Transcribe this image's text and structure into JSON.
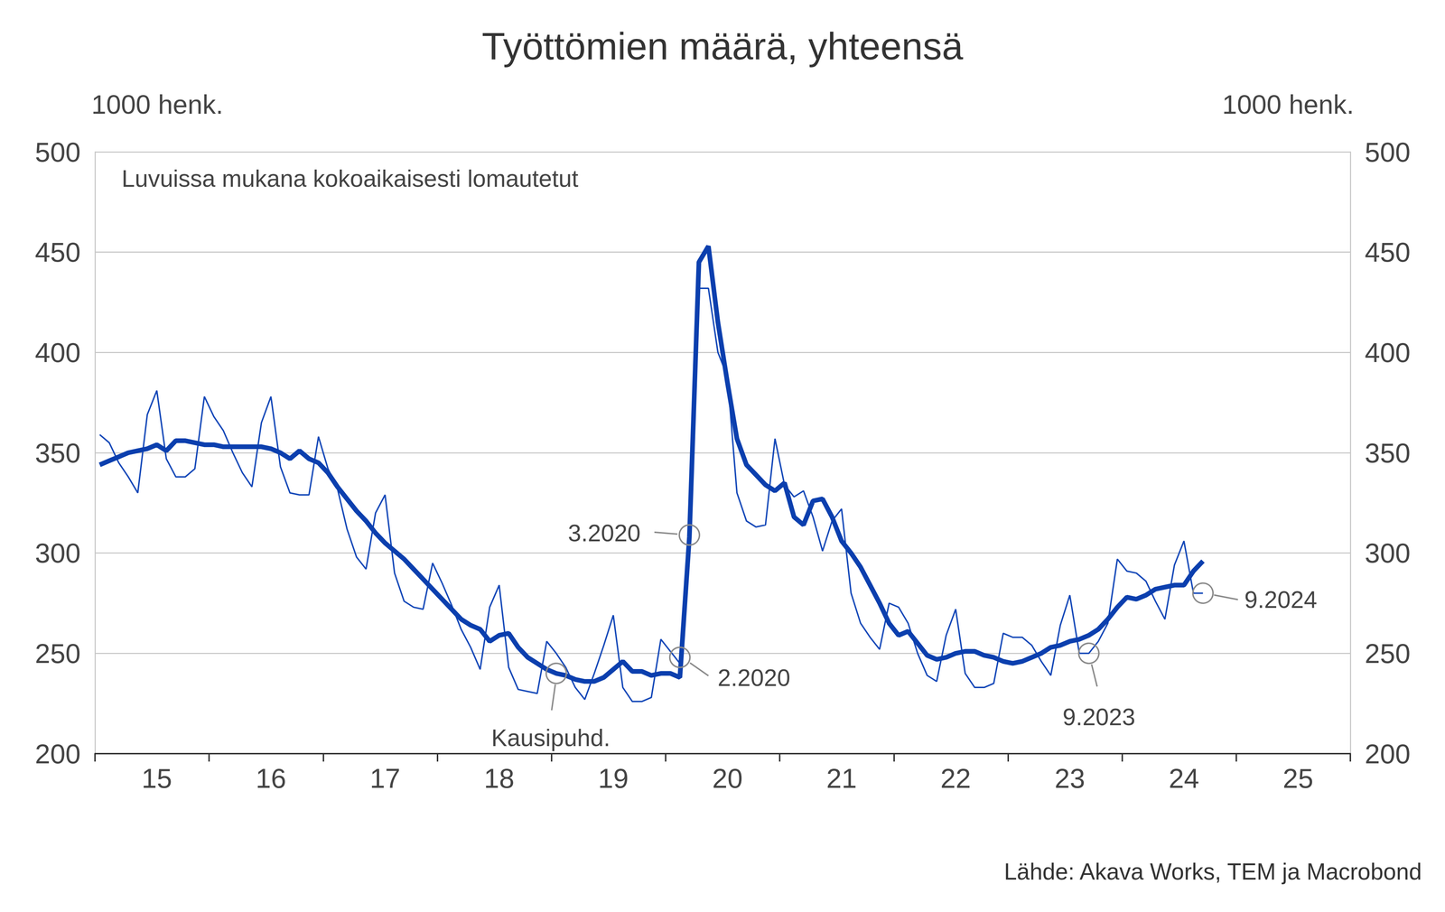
{
  "chart_data": {
    "type": "line",
    "title": "Työttömien määrä, yhteensä",
    "subtitle": "Luvuissa mukana kokoaikaisesti lomautetut",
    "ylabel": "1000 henk.",
    "y2label": "1000 henk.",
    "source": "Lähde: Akava Works, TEM ja Macrobond",
    "grid": true,
    "ylim": [
      200,
      500
    ],
    "yticks": [
      200,
      250,
      300,
      350,
      400,
      450,
      500
    ],
    "y2lim": [
      200,
      500
    ],
    "y2ticks": [
      200,
      250,
      300,
      350,
      400,
      450,
      500
    ],
    "categories": [
      null,
      null,
      null,
      null,
      null,
      null,
      "15",
      null,
      null,
      null,
      null,
      null,
      null,
      null,
      null,
      null,
      null,
      null,
      "16",
      null,
      null,
      null,
      null,
      null,
      null,
      null,
      null,
      null,
      null,
      null,
      "17",
      null,
      null,
      null,
      null,
      null,
      null,
      null,
      null,
      null,
      null,
      null,
      "18",
      null,
      null,
      null,
      null,
      null,
      null,
      null,
      null,
      null,
      null,
      null,
      "19",
      null,
      null,
      null,
      null,
      null,
      null,
      null,
      null,
      null,
      null,
      null,
      "20",
      null,
      null,
      null,
      null,
      null,
      null,
      null,
      null,
      null,
      null,
      null,
      "21",
      null,
      null,
      null,
      null,
      null,
      null,
      null,
      null,
      null,
      null,
      null,
      "22",
      null,
      null,
      null,
      null,
      null,
      null,
      null,
      null,
      null,
      null,
      null,
      "23",
      null,
      null,
      null,
      null,
      null,
      null,
      null,
      null,
      null,
      null,
      null,
      "24",
      null,
      null,
      null,
      null,
      null,
      null,
      null,
      null,
      null,
      null,
      null,
      "25",
      null,
      null,
      null,
      null,
      null
    ],
    "series": [
      {
        "color": "#1448b8",
        "line_style": "thin",
        "values": [
          359,
          355,
          345,
          338,
          330,
          369,
          381,
          347,
          338,
          338,
          342,
          378,
          368,
          361,
          350,
          340,
          333,
          365,
          378,
          343,
          330,
          329,
          329,
          358,
          342,
          332,
          312,
          298,
          292,
          320,
          329,
          290,
          276,
          273,
          272,
          295,
          285,
          274,
          262,
          253,
          242,
          273,
          284,
          243,
          232,
          231,
          230,
          256,
          250,
          243,
          233,
          227,
          240,
          254,
          269,
          233,
          226,
          226,
          228,
          257,
          251,
          245,
          300,
          432,
          432,
          400,
          388,
          330,
          316,
          313,
          314,
          357,
          334,
          328,
          331,
          318,
          301,
          316,
          322,
          280,
          265,
          258,
          252,
          275,
          273,
          265,
          250,
          239,
          236,
          259,
          272,
          240,
          233,
          233,
          235,
          260,
          258,
          258,
          254,
          246,
          239,
          264,
          279,
          250,
          250,
          256,
          265,
          297,
          291,
          290,
          286,
          276,
          267,
          294,
          306,
          280,
          280,
          null,
          null,
          null,
          null,
          null,
          null,
          null,
          null,
          null,
          null,
          null,
          null,
          null,
          null,
          null
        ]
      },
      {
        "color": "#0b3fae",
        "line_style": "thick",
        "values": [
          344,
          346,
          348,
          350,
          351,
          352,
          354,
          351,
          356,
          356,
          355,
          354,
          354,
          353,
          353,
          353,
          353,
          353,
          352,
          350,
          347,
          351,
          347,
          345,
          340,
          333,
          327,
          321,
          316,
          310,
          305,
          301,
          297,
          292,
          287,
          282,
          277,
          272,
          267,
          264,
          262,
          256,
          259,
          260,
          253,
          248,
          245,
          242,
          240,
          239,
          237,
          236,
          236,
          238,
          242,
          246,
          241,
          241,
          239,
          240,
          240,
          238,
          308,
          445,
          453,
          415,
          385,
          357,
          344,
          339,
          334,
          331,
          335,
          318,
          314,
          326,
          327,
          318,
          306,
          300,
          293,
          284,
          275,
          265,
          259,
          261,
          255,
          249,
          247,
          248,
          250,
          251,
          251,
          249,
          248,
          246,
          245,
          246,
          248,
          250,
          253,
          254,
          256,
          257,
          259,
          262,
          267,
          273,
          278,
          277,
          279,
          282,
          283,
          284,
          284,
          291,
          296,
          null,
          null,
          null,
          null,
          null,
          null,
          null,
          null,
          null,
          null,
          null,
          null,
          null,
          null,
          null
        ]
      }
    ],
    "annotations": [
      {
        "text": "3.2020",
        "x": 62,
        "y": 309
      },
      {
        "text": "2.2020",
        "x": 61,
        "y": 248
      },
      {
        "text": "Kausipuhd.",
        "x": 48,
        "y": 240
      },
      {
        "text": "9.2023",
        "x": 104,
        "y": 250
      },
      {
        "text": "9.2024",
        "x": 116,
        "y": 280
      }
    ]
  }
}
